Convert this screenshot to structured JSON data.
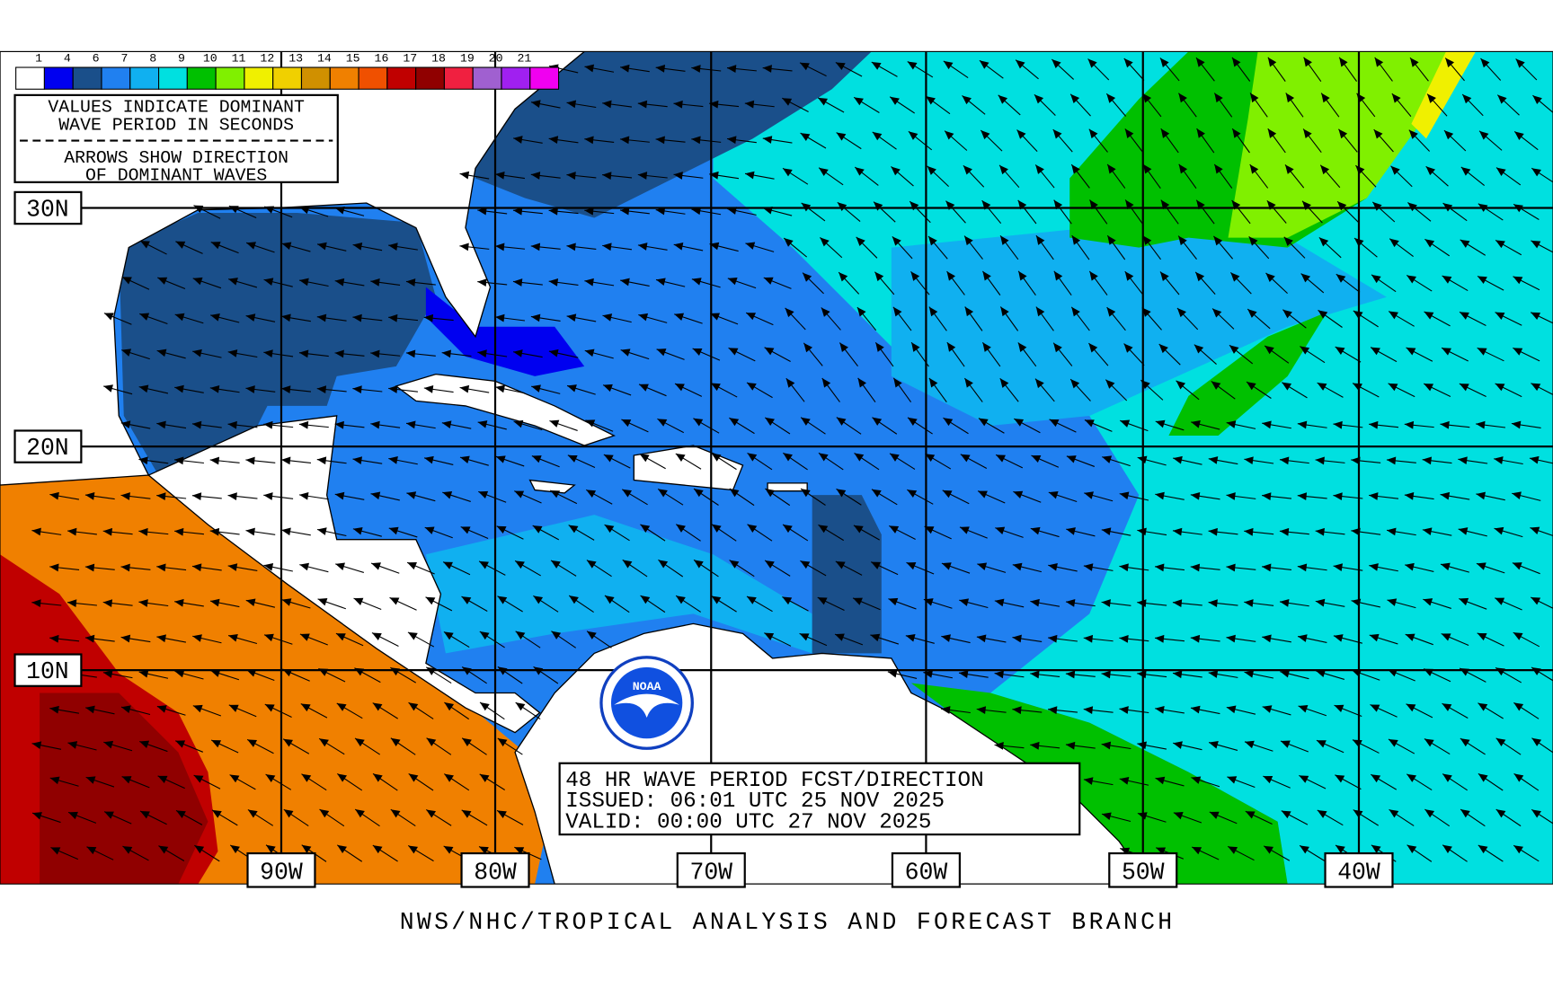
{
  "legend": {
    "labels": [
      "1",
      "4",
      "6",
      "7",
      "8",
      "9",
      "10",
      "11",
      "12",
      "13",
      "14",
      "15",
      "16",
      "17",
      "18",
      "19",
      "20",
      "21"
    ],
    "colors": [
      "#ffffff",
      "#0000f0",
      "#1a4f8a",
      "#2080f0",
      "#10b0f0",
      "#00e0e0",
      "#00c000",
      "#80f000",
      "#f0f000",
      "#f0d000",
      "#d09000",
      "#f08000",
      "#f05000",
      "#c00000",
      "#900000",
      "#f02040",
      "#a060d0",
      "#a020f0",
      "#f000f0"
    ]
  },
  "info_box": {
    "lines": [
      "VALUES INDICATE DOMINANT",
      "WAVE PERIOD IN SECONDS",
      "ARROWS SHOW DIRECTION",
      "OF DOMINANT WAVES"
    ]
  },
  "latitudes": [
    "30N",
    "20N",
    "10N"
  ],
  "longitudes": [
    "90W",
    "80W",
    "70W",
    "60W",
    "50W",
    "40W"
  ],
  "forecast_box": {
    "lines": [
      "48 HR WAVE PERIOD FCST/DIRECTION",
      "ISSUED:  06:01 UTC 25 NOV 2025",
      "VALID:   00:00 UTC 27 NOV 2025"
    ]
  },
  "logo_text": "NOAA",
  "footer": "NWS/NHC/TROPICAL ANALYSIS AND FORECAST BRANCH"
}
